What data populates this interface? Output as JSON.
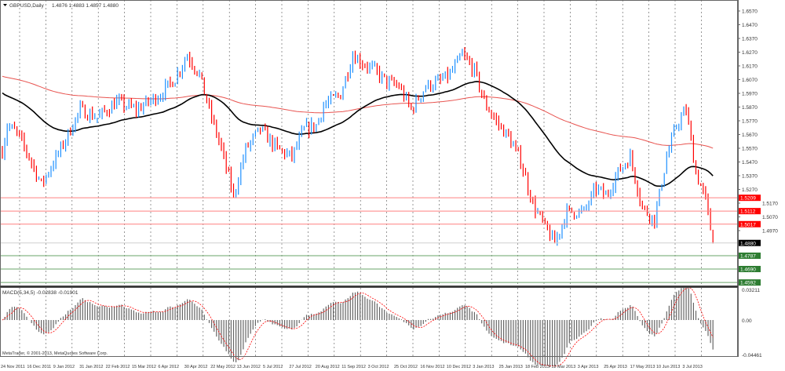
{
  "header": {
    "symbol": "GBPUSD,Daily",
    "ohlc": "1.4876 1.4883 1.4857 1.4880"
  },
  "macd_label": "MACD(5,34,5) -0.02838 -0.01901",
  "copyright": "MetaTrader, © 2001-2013, MetaQuotes Software Corp.",
  "colors": {
    "bull": "#1e90ff",
    "bear": "#ff0000",
    "ma_slow": "#e8534f",
    "ma_fast": "#000000",
    "resistance": "#ff0000",
    "support": "#2e7d32",
    "current": "#000000"
  },
  "chart_data": {
    "type": "candlestick",
    "title": "GBPUSD,Daily",
    "ylim": [
      1.457,
      1.66
    ],
    "price_ticks": [
      "1.6570",
      "1.6470",
      "1.6370",
      "1.6270",
      "1.6170",
      "1.6070",
      "1.5970",
      "1.5870",
      "1.5770",
      "1.5670",
      "1.5570",
      "1.5470",
      "1.5370",
      "1.5270",
      "1.5170",
      "1.5070",
      "1.4970"
    ],
    "date_ticks": [
      "24 Nov 2011",
      "16 Dec 2011",
      "9 Jan 2012",
      "31 Jan 2012",
      "22 Feb 2012",
      "15 Mar 2012",
      "6 Apr 2012",
      "30 Apr 2012",
      "22 May 2012",
      "13 Jun 2012",
      "5 Jul 2012",
      "27 Jul 2012",
      "20 Aug 2012",
      "11 Sep 2012",
      "3 Oct 2012",
      "25 Oct 2012",
      "16 Nov 2012",
      "10 Dec 2012",
      "3 Jan 2013",
      "25 Jan 2013",
      "18 Feb 2013",
      "12 Mar 2013",
      "3 Apr 2013",
      "25 Apr 2013",
      "17 May 2013",
      "10 Jun 2013",
      "3 Jul 2013"
    ],
    "close_path": [
      {
        "bar": 0,
        "price": 1.555
      },
      {
        "bar": 2,
        "price": 1.5736
      },
      {
        "bar": 6,
        "price": 1.5679
      },
      {
        "bar": 11,
        "price": 1.5507
      },
      {
        "bar": 16,
        "price": 1.5307
      },
      {
        "bar": 24,
        "price": 1.5564
      },
      {
        "bar": 32,
        "price": 1.585
      },
      {
        "bar": 39,
        "price": 1.5793
      },
      {
        "bar": 47,
        "price": 1.5907
      },
      {
        "bar": 55,
        "price": 1.585
      },
      {
        "bar": 65,
        "price": 1.5964
      },
      {
        "bar": 71,
        "price": 1.6079
      },
      {
        "bar": 76,
        "price": 1.625
      },
      {
        "bar": 81,
        "price": 1.6107
      },
      {
        "bar": 85,
        "price": 1.585
      },
      {
        "bar": 90,
        "price": 1.5564
      },
      {
        "bar": 95,
        "price": 1.5221
      },
      {
        "bar": 100,
        "price": 1.5564
      },
      {
        "bar": 106,
        "price": 1.5707
      },
      {
        "bar": 113,
        "price": 1.5564
      },
      {
        "bar": 119,
        "price": 1.5507
      },
      {
        "bar": 124,
        "price": 1.5707
      },
      {
        "bar": 129,
        "price": 1.5736
      },
      {
        "bar": 132,
        "price": 1.5879
      },
      {
        "bar": 139,
        "price": 1.5964
      },
      {
        "bar": 144,
        "price": 1.625
      },
      {
        "bar": 148,
        "price": 1.6193
      },
      {
        "bar": 153,
        "price": 1.6136
      },
      {
        "bar": 158,
        "price": 1.605
      },
      {
        "bar": 163,
        "price": 1.6021
      },
      {
        "bar": 168,
        "price": 1.585
      },
      {
        "bar": 174,
        "price": 1.6021
      },
      {
        "bar": 179,
        "price": 1.605
      },
      {
        "bar": 184,
        "price": 1.6107
      },
      {
        "bar": 189,
        "price": 1.625
      },
      {
        "bar": 194,
        "price": 1.6136
      },
      {
        "bar": 198,
        "price": 1.5907
      },
      {
        "bar": 203,
        "price": 1.5764
      },
      {
        "bar": 208,
        "price": 1.565
      },
      {
        "bar": 213,
        "price": 1.5479
      },
      {
        "bar": 218,
        "price": 1.5164
      },
      {
        "bar": 223,
        "price": 1.4993
      },
      {
        "bar": 227,
        "price": 1.4879
      },
      {
        "bar": 232,
        "price": 1.5107
      },
      {
        "bar": 239,
        "price": 1.5107
      },
      {
        "bar": 244,
        "price": 1.5279
      },
      {
        "bar": 248,
        "price": 1.5221
      },
      {
        "bar": 253,
        "price": 1.5393
      },
      {
        "bar": 258,
        "price": 1.5507
      },
      {
        "bar": 263,
        "price": 1.5136
      },
      {
        "bar": 268,
        "price": 1.505
      },
      {
        "bar": 273,
        "price": 1.5507
      },
      {
        "bar": 277,
        "price": 1.5736
      },
      {
        "bar": 281,
        "price": 1.585
      },
      {
        "bar": 285,
        "price": 1.5393
      },
      {
        "bar": 289,
        "price": 1.5193
      },
      {
        "bar": 292,
        "price": 1.488
      }
    ],
    "levels": [
      {
        "price": "1.5209",
        "kind": "resistance"
      },
      {
        "price": "1.5112",
        "kind": "resistance"
      },
      {
        "price": "1.5017",
        "kind": "resistance"
      },
      {
        "price": "1.4880",
        "kind": "current"
      },
      {
        "price": "1.4787",
        "kind": "support"
      },
      {
        "price": "1.4690",
        "kind": "support"
      },
      {
        "price": "1.4592",
        "kind": "support"
      }
    ],
    "macd": {
      "params": [
        5,
        34,
        5
      ],
      "ticks": [
        "0.03211",
        "0.00",
        "-0.04461"
      ],
      "ylim": [
        -0.04461,
        0.03211
      ]
    }
  }
}
